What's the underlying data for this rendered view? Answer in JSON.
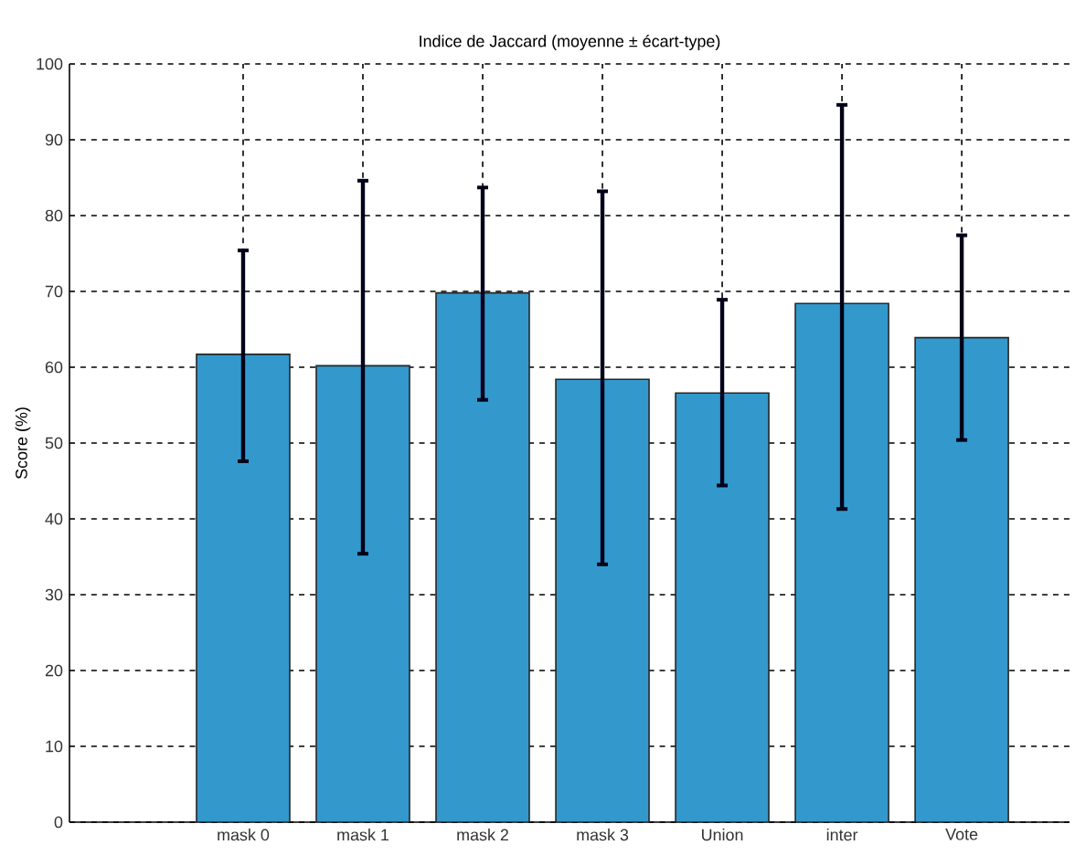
{
  "chart_data": {
    "type": "bar",
    "title": "Indice de Jaccard (moyenne ± écart-type)",
    "ylabel": "Score (%)",
    "categories": [
      "mask 0",
      "mask 1",
      "mask 2",
      "mask 3",
      "Union",
      "inter",
      "Vote"
    ],
    "values": [
      61.7,
      60.2,
      69.8,
      58.4,
      56.6,
      68.4,
      63.9
    ],
    "errors": [
      [
        47.6,
        75.4
      ],
      [
        35.4,
        84.6
      ],
      [
        55.7,
        83.7
      ],
      [
        34.0,
        83.2
      ],
      [
        44.4,
        68.9
      ],
      [
        41.3,
        94.6
      ],
      [
        50.4,
        77.4
      ]
    ],
    "color": "#3399cc",
    "ylim": [
      0,
      100
    ],
    "yticks": [
      0,
      10,
      20,
      30,
      40,
      50,
      60,
      70,
      80,
      90,
      100
    ],
    "grid": true
  }
}
